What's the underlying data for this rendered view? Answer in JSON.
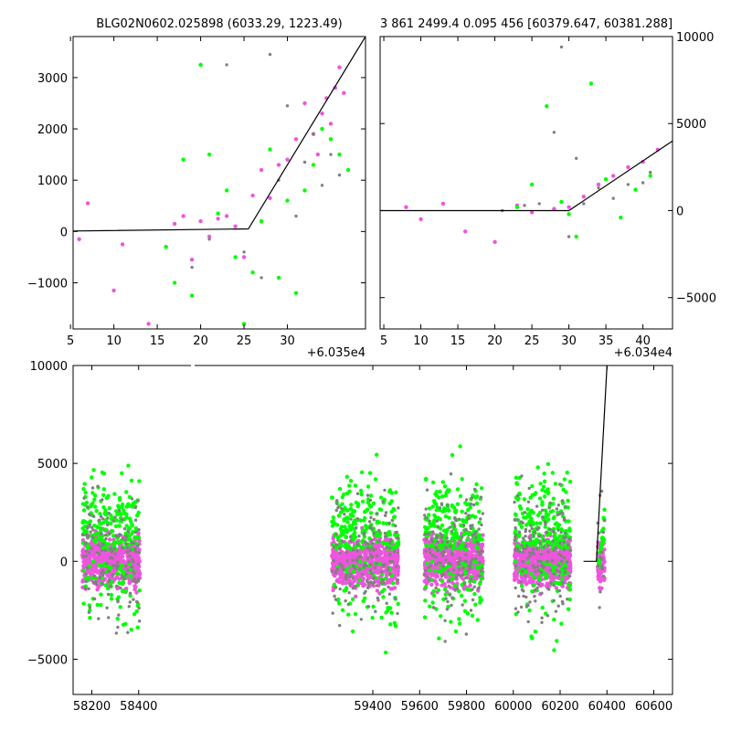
{
  "colors": {
    "magenta": "#ee55dd",
    "green": "#00ff00",
    "grey": "#808080",
    "model": "#000000"
  },
  "chart_data": [
    {
      "type": "scatter",
      "title": "BLG02N0602.025898 (6033.29, 1223.49)",
      "xlim": [
        60350.3,
        60384.0
      ],
      "ylim": [
        -1900,
        3800
      ],
      "xticks": [
        5,
        10,
        15,
        20,
        25,
        30
      ],
      "yticks": [
        -1000,
        0,
        1000,
        2000,
        3000
      ],
      "x_offset_label": "+6.035e4",
      "model": {
        "x": [
          60350.3,
          60370.5,
          60384.0
        ],
        "y": [
          10,
          50,
          3800
        ]
      },
      "series": [
        {
          "color": "magenta",
          "x": [
            60351,
            60352,
            60355,
            60356,
            60359,
            60361,
            60362,
            60363,
            60364,
            60365,
            60366,
            60367,
            60368,
            60369,
            60370,
            60371,
            60372,
            60373,
            60374,
            60375,
            60376,
            60377,
            60378,
            60378.5,
            60379,
            60379.5,
            60380,
            60380.5,
            60381,
            60381.5
          ],
          "y": [
            -150,
            550,
            -1150,
            -250,
            -1800,
            -300,
            150,
            300,
            -550,
            200,
            -100,
            250,
            300,
            100,
            -500,
            700,
            1200,
            650,
            1300,
            1400,
            1800,
            2500,
            1900,
            1500,
            2300,
            2600,
            2100,
            2800,
            3200,
            2700
          ]
        },
        {
          "color": "green",
          "x": [
            60361,
            60362,
            60363,
            60364,
            60365,
            60366,
            60367,
            60368,
            60369,
            60370,
            60371,
            60372,
            60373,
            60374,
            60375,
            60376,
            60377,
            60378,
            60379,
            60380,
            60381,
            60382
          ],
          "y": [
            -300,
            -1000,
            1400,
            -1250,
            3250,
            1500,
            350,
            800,
            -500,
            -1800,
            -800,
            200,
            1600,
            -900,
            600,
            -1200,
            800,
            1300,
            2000,
            1800,
            1500,
            1200
          ]
        },
        {
          "color": "grey",
          "x": [
            60364,
            60366,
            60368,
            60370,
            60372,
            60373,
            60374,
            60375,
            60376,
            60377,
            60378,
            60379,
            60380,
            60381
          ],
          "y": [
            -700,
            -150,
            3250,
            -400,
            -900,
            3450,
            1000,
            2450,
            300,
            1350,
            1900,
            900,
            1500,
            1100
          ]
        }
      ]
    },
    {
      "type": "scatter",
      "title": "3 861 2499.4 0.095 456 [60379.647, 60381.288]",
      "xlim": [
        60344.5,
        60384.0
      ],
      "ylim": [
        -6800,
        10000
      ],
      "xticks": [
        5,
        10,
        15,
        20,
        25,
        30,
        35,
        40
      ],
      "yticks": [
        -5000,
        0,
        5000,
        10000
      ],
      "x_offset_label": "+6.034e4",
      "model": {
        "x": [
          60344.5,
          60370.0,
          60384.0
        ],
        "y": [
          0,
          0,
          4000
        ]
      },
      "series": [
        {
          "color": "magenta",
          "x": [
            60348,
            60350,
            60353,
            60356,
            60360,
            60363,
            60365,
            60368,
            60370,
            60372,
            60374,
            60376,
            60378,
            60380,
            60382
          ],
          "y": [
            200,
            -500,
            400,
            -1200,
            -1800,
            300,
            -100,
            100,
            200,
            800,
            1500,
            2000,
            2500,
            2800,
            3500
          ]
        },
        {
          "color": "green",
          "x": [
            60363,
            60365,
            60367,
            60369,
            60370,
            60371,
            60373,
            60375,
            60377,
            60379,
            60381
          ],
          "y": [
            200,
            1500,
            6000,
            500,
            -200,
            -1500,
            7300,
            1800,
            -400,
            1200,
            2000
          ]
        },
        {
          "color": "grey",
          "x": [
            60361,
            60364,
            60366,
            60368,
            60369,
            60370,
            60371,
            60372,
            60374,
            60376,
            60378,
            60380,
            60381
          ],
          "y": [
            0,
            300,
            400,
            4500,
            9400,
            -1500,
            3000,
            400,
            1300,
            700,
            1500,
            1600,
            2200
          ]
        }
      ]
    },
    {
      "type": "scatter",
      "title": "",
      "xlim": [
        58120,
        60680
      ],
      "ylim": [
        -6800,
        10000
      ],
      "xticks": [
        58200,
        58400,
        59400,
        59600,
        59800,
        60000,
        60200,
        60400,
        60600
      ],
      "yticks": [
        -5000,
        0,
        5000,
        10000
      ],
      "model": {
        "x": [
          60300,
          60355,
          60400
        ],
        "y": [
          0,
          0,
          10000
        ]
      },
      "seasons": [
        [
          58160,
          58405
        ],
        [
          59225,
          59510
        ],
        [
          59620,
          59870
        ],
        [
          60005,
          60245
        ],
        [
          60360,
          60390
        ]
      ]
    }
  ]
}
